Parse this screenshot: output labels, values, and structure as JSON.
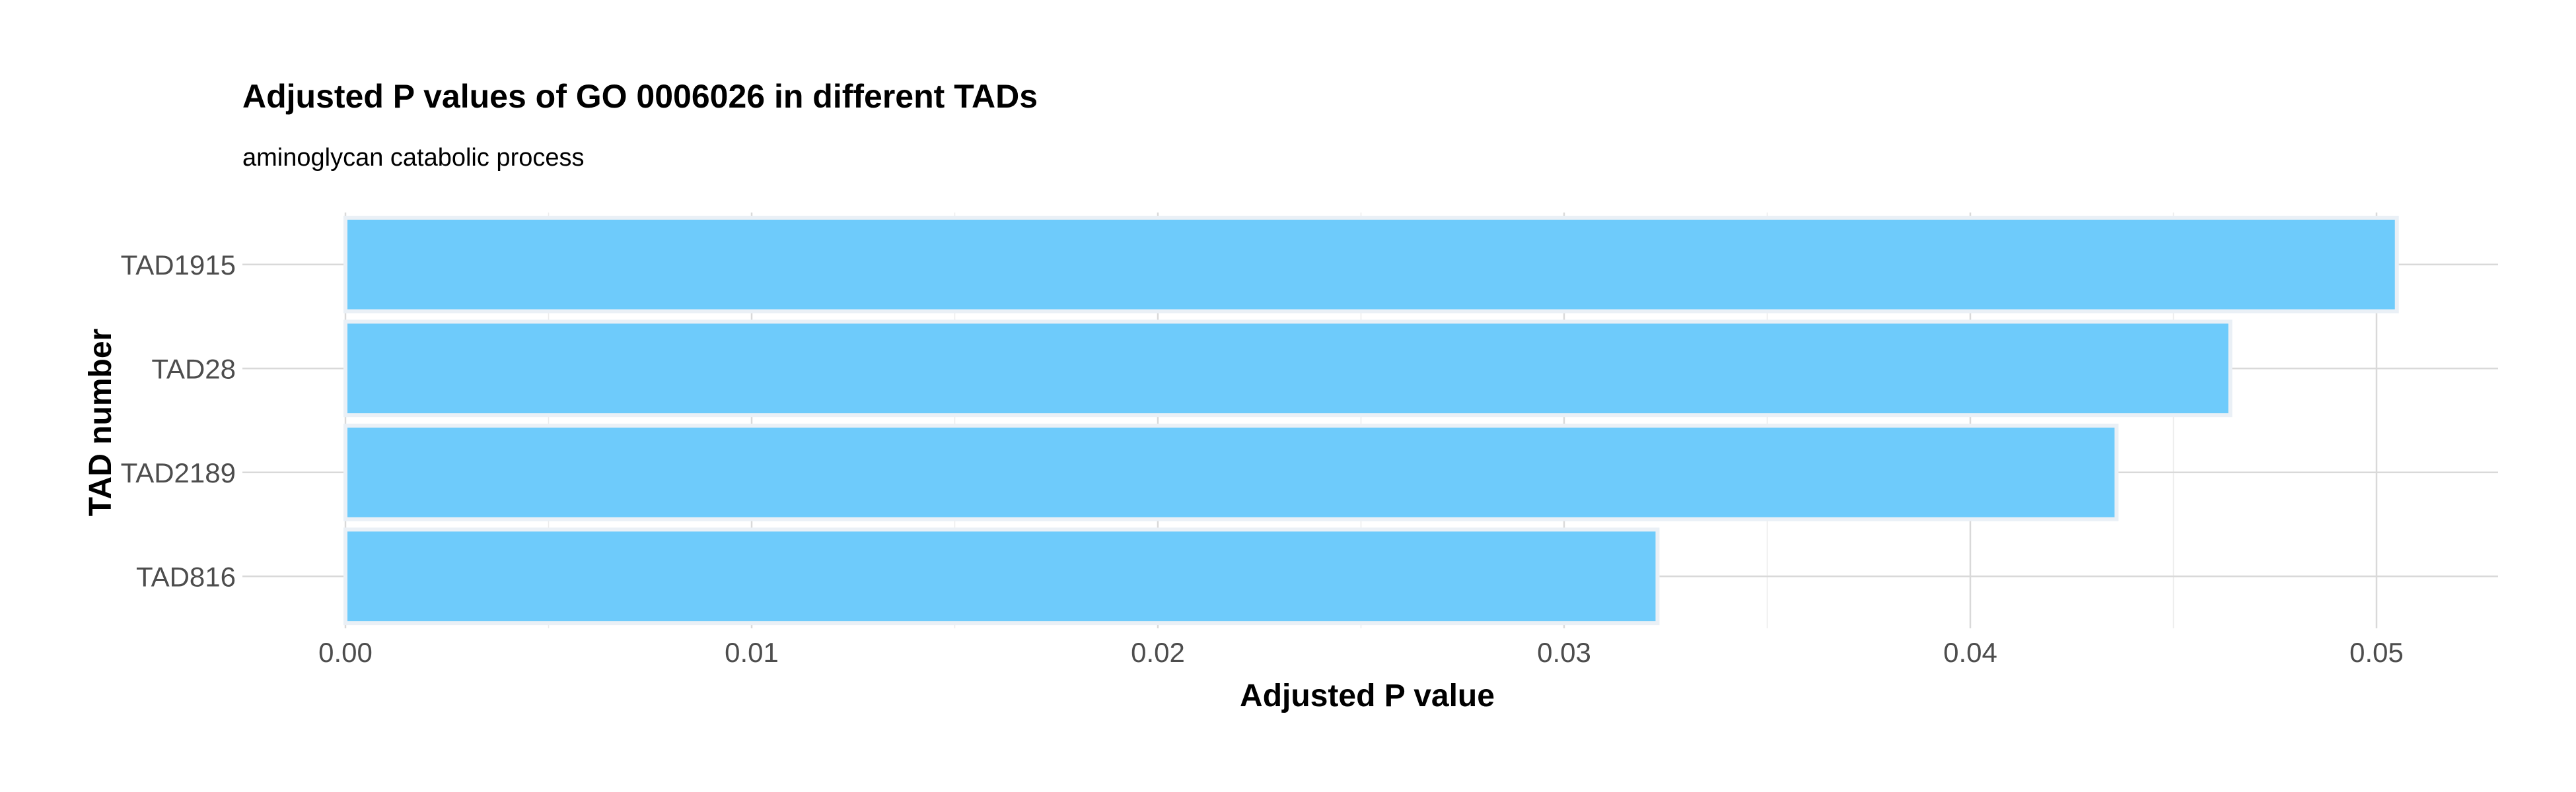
{
  "chart_data": {
    "type": "bar",
    "orientation": "horizontal",
    "title": "Adjusted P values of GO 0006026 in different TADs",
    "subtitle": "aminoglycan catabolic process",
    "xlabel": "Adjusted P value",
    "ylabel": "TAD number",
    "categories": [
      "TAD1915",
      "TAD28",
      "TAD2189",
      "TAD816"
    ],
    "values": [
      0.0505,
      0.0464,
      0.0436,
      0.0323
    ],
    "xlim": [
      0,
      0.053
    ],
    "x_ticks": [
      "0.00",
      "0.01",
      "0.02",
      "0.03",
      "0.04",
      "0.05"
    ],
    "bar_color": "#6ecbfb",
    "grid": true,
    "legend": "none"
  }
}
